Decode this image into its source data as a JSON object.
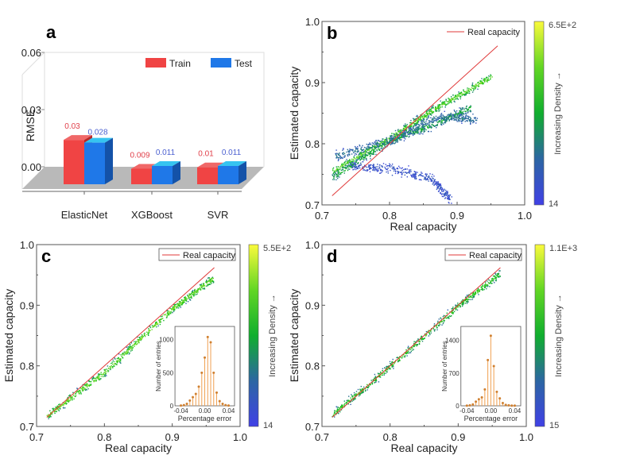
{
  "figure": {
    "panels": [
      "a",
      "b",
      "c",
      "d"
    ]
  },
  "chart_data": [
    {
      "panel": "a",
      "type": "bar",
      "style": "3d-grouped",
      "title": "",
      "xlabel": "",
      "ylabel": "RMSE",
      "ylim": [
        0,
        0.06
      ],
      "yticks": [
        "0.00",
        "0.03",
        "0.06"
      ],
      "categories": [
        "ElasticNet",
        "XGBoost",
        "SVR"
      ],
      "series": [
        {
          "name": "Train",
          "color": "#f04444",
          "values": [
            0.03,
            0.009,
            0.01
          ],
          "labels": [
            "0.03",
            "0.009",
            "0.01"
          ],
          "label_color": "#e0404a"
        },
        {
          "name": "Test",
          "color": "#1f78e8",
          "values": [
            0.028,
            0.011,
            0.011
          ],
          "labels": [
            "0.028",
            "0.011",
            "0.011"
          ],
          "label_color": "#4a5fd0"
        }
      ],
      "legend": "top-right"
    },
    {
      "panel": "b",
      "type": "scatter",
      "title": "",
      "xlabel": "Real capacity",
      "ylabel": "Estimated capacity",
      "xlim": [
        0.7,
        1.0
      ],
      "ylim": [
        0.7,
        1.0
      ],
      "xticks": [
        "0.7",
        "0.8",
        "0.9",
        "1.0"
      ],
      "yticks": [
        "0.7",
        "0.8",
        "0.9",
        "1.0"
      ],
      "reference_line": {
        "name": "Real capacity",
        "color": "#e03a3a",
        "from": [
          0.715,
          0.715
        ],
        "to": [
          0.96,
          0.96
        ]
      },
      "legend": "top-right",
      "colorbar": {
        "label": "Increasing Density →",
        "min_label": "14",
        "max_label": "6.5E+2",
        "min": 14,
        "max": 650
      },
      "trend_segments": [
        {
          "x": [
            0.715,
            0.8,
            0.87,
            0.95
          ],
          "y": [
            0.755,
            0.81,
            0.86,
            0.91
          ],
          "density": 0.7
        },
        {
          "x": [
            0.715,
            0.8,
            0.86,
            0.92
          ],
          "y": [
            0.745,
            0.805,
            0.83,
            0.86
          ],
          "density": 0.45
        },
        {
          "x": [
            0.72,
            0.8,
            0.87,
            0.93
          ],
          "y": [
            0.78,
            0.805,
            0.845,
            0.84
          ],
          "density": 0.25
        },
        {
          "x": [
            0.74,
            0.8,
            0.86,
            0.89
          ],
          "y": [
            0.765,
            0.76,
            0.745,
            0.71
          ],
          "density": 0.05
        }
      ]
    },
    {
      "panel": "c",
      "type": "scatter",
      "title": "",
      "xlabel": "Real capacity",
      "ylabel": "Estimated capacity",
      "xlim": [
        0.7,
        1.0
      ],
      "ylim": [
        0.7,
        1.0
      ],
      "xticks": [
        "0.7",
        "0.8",
        "0.9",
        "1.0"
      ],
      "yticks": [
        "0.7",
        "0.8",
        "0.9",
        "1.0"
      ],
      "reference_line": {
        "name": "Real capacity",
        "color": "#e03a3a",
        "from": [
          0.715,
          0.715
        ],
        "to": [
          0.962,
          0.962
        ]
      },
      "legend": "top-right",
      "colorbar": {
        "label": "Increasing Density →",
        "min_label": "14",
        "max_label": "5.5E+2",
        "min": 14,
        "max": 550
      },
      "trend_segments": [
        {
          "x": [
            0.715,
            0.8,
            0.9,
            0.96
          ],
          "y": [
            0.718,
            0.79,
            0.895,
            0.945
          ],
          "density": 0.75
        }
      ],
      "inset": {
        "type": "bar",
        "xlabel": "Percentage error",
        "ylabel": "Number of entries",
        "xlim": [
          -0.05,
          0.05
        ],
        "ylim": [
          0,
          1200
        ],
        "xticks": [
          "-0.04",
          "0.00",
          "0.04"
        ],
        "yticks": [
          "0",
          "500",
          "1000"
        ],
        "bins": [
          -0.04,
          -0.035,
          -0.03,
          -0.025,
          -0.02,
          -0.015,
          -0.01,
          -0.005,
          0.0,
          0.005,
          0.01,
          0.015,
          0.02,
          0.025,
          0.03,
          0.035,
          0.04
        ],
        "values": [
          5,
          10,
          30,
          80,
          130,
          180,
          290,
          500,
          730,
          1040,
          960,
          500,
          200,
          70,
          30,
          10,
          5
        ],
        "color": "#f0a050"
      }
    },
    {
      "panel": "d",
      "type": "scatter",
      "title": "",
      "xlabel": "Real capacity",
      "ylabel": "Estimated capacity",
      "xlim": [
        0.7,
        1.0
      ],
      "ylim": [
        0.7,
        1.0
      ],
      "xticks": [
        "0.7",
        "0.8",
        "0.9",
        "1.0"
      ],
      "yticks": [
        "0.7",
        "0.8",
        "0.9",
        "1.0"
      ],
      "reference_line": {
        "name": "Real capacity",
        "color": "#e03a3a",
        "from": [
          0.715,
          0.715
        ],
        "to": [
          0.962,
          0.962
        ]
      },
      "legend": "top-right",
      "colorbar": {
        "label": "Increasing Density →",
        "min_label": "15",
        "max_label": "1.1E+3",
        "min": 15,
        "max": 1100
      },
      "trend_segments": [
        {
          "x": [
            0.715,
            0.8,
            0.9,
            0.96
          ],
          "y": [
            0.72,
            0.8,
            0.9,
            0.952
          ],
          "density": 0.6
        }
      ],
      "inset": {
        "type": "bar",
        "xlabel": "Percentage error",
        "ylabel": "Number of entries",
        "xlim": [
          -0.05,
          0.05
        ],
        "ylim": [
          0,
          1700
        ],
        "xticks": [
          "-0.04",
          "0.00",
          "0.04"
        ],
        "yticks": [
          "0",
          "700",
          "1400"
        ],
        "bins": [
          -0.04,
          -0.035,
          -0.03,
          -0.025,
          -0.02,
          -0.015,
          -0.01,
          -0.005,
          0.0,
          0.005,
          0.01,
          0.015,
          0.02,
          0.025,
          0.03,
          0.035,
          0.04
        ],
        "values": [
          5,
          10,
          30,
          90,
          140,
          180,
          350,
          980,
          1500,
          850,
          300,
          160,
          60,
          20,
          10,
          5,
          5
        ],
        "color": "#f0a050"
      }
    }
  ]
}
